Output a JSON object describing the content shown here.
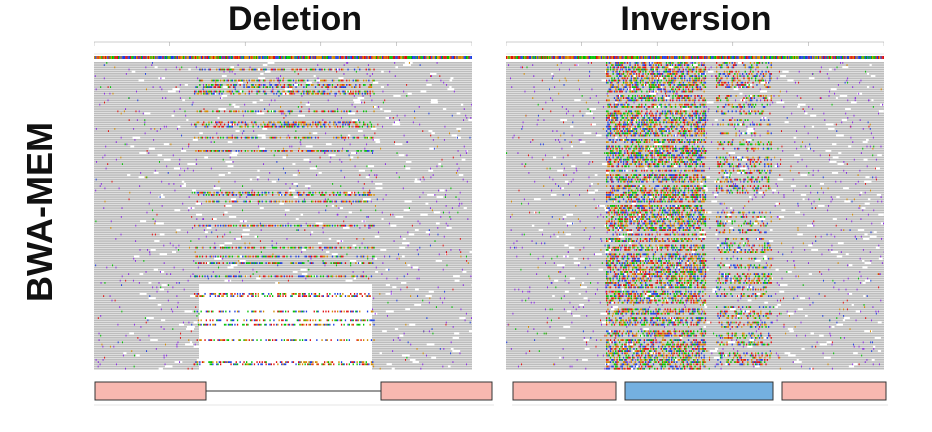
{
  "titles": {
    "left": "Deletion",
    "right": "Inversion"
  },
  "row_label": "BWA-MEM",
  "colors": {
    "read_gray": "#bdbdbd",
    "mismatch_a": "#00c000",
    "mismatch_c": "#1f3fe0",
    "mismatch_g": "#d48a00",
    "mismatch_t": "#e01010",
    "soft_purple": "#8a2be2",
    "segment_pink": "#f8b8b0",
    "segment_blue": "#74b0e0",
    "outline": "#333333"
  },
  "icons": {
    "deletion_schematic": "segment-gap-segment",
    "inversion_schematic": "segment-inverted-segment"
  }
}
